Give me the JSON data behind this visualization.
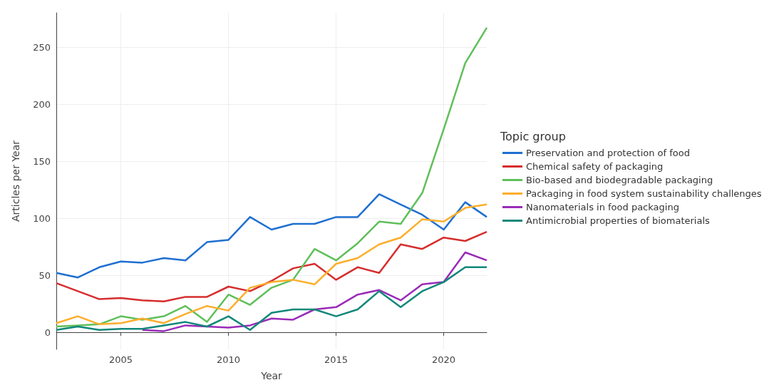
{
  "chart_data": {
    "type": "line",
    "xlabel": "Year",
    "ylabel": "Articles per Year",
    "legend_title": "Topic group",
    "legend": "right",
    "grid": true,
    "marker": "none",
    "line_style": "solid",
    "x": [
      2002,
      2003,
      2004,
      2005,
      2006,
      2007,
      2008,
      2009,
      2010,
      2011,
      2012,
      2013,
      2014,
      2015,
      2016,
      2017,
      2018,
      2019,
      2020,
      2021,
      2022
    ],
    "xlim": [
      2002,
      2022
    ],
    "xticks": [
      2005,
      2010,
      2015,
      2020
    ],
    "ylim": [
      -15,
      280
    ],
    "yticks": [
      0,
      50,
      100,
      150,
      200,
      250
    ],
    "series": [
      {
        "name": "Preservation and protection of food",
        "color": "#1f6fd1",
        "values": [
          52,
          48,
          57,
          62,
          61,
          65,
          63,
          79,
          81,
          101,
          90,
          95,
          95,
          101,
          101,
          121,
          112,
          103,
          90,
          114,
          101
        ]
      },
      {
        "name": "Chemical safety of packaging",
        "color": "#d62d2d",
        "values": [
          43,
          36,
          29,
          30,
          28,
          27,
          31,
          31,
          40,
          36,
          45,
          56,
          60,
          46,
          57,
          52,
          77,
          73,
          83,
          80,
          88
        ]
      },
      {
        "name": "Bio-based and biodegradable packaging",
        "color": "#5fbf5a",
        "values": [
          5,
          6,
          7,
          14,
          11,
          14,
          23,
          9,
          33,
          24,
          39,
          46,
          73,
          63,
          78,
          97,
          95,
          122,
          178,
          236,
          267
        ]
      },
      {
        "name": "Packaging in food system sustainability challenges",
        "color": "#fdae2b",
        "values": [
          8,
          14,
          7,
          8,
          12,
          8,
          16,
          23,
          19,
          39,
          44,
          46,
          42,
          60,
          65,
          77,
          83,
          99,
          97,
          109,
          112
        ]
      },
      {
        "name": "Nanomaterials in food packaging",
        "color": "#9a2bb8",
        "values": [
          null,
          null,
          null,
          null,
          2,
          1,
          6,
          5,
          4,
          6,
          12,
          11,
          20,
          22,
          33,
          37,
          28,
          42,
          44,
          70,
          63
        ]
      },
      {
        "name": "Antimicrobial properties of biomaterials",
        "color": "#11877a",
        "values": [
          2,
          5,
          2,
          3,
          3,
          6,
          9,
          5,
          14,
          2,
          17,
          20,
          20,
          14,
          20,
          36,
          22,
          36,
          44,
          57,
          57
        ]
      }
    ]
  }
}
